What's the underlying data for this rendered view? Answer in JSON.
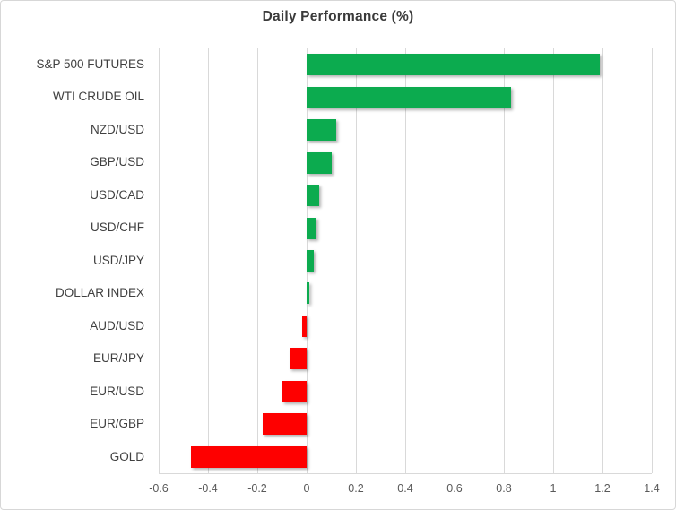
{
  "chart": {
    "title": "Daily Performance (%)"
  },
  "chart_data": {
    "type": "bar",
    "orientation": "horizontal",
    "title": "Daily Performance (%)",
    "categories": [
      "S&P 500 FUTURES",
      "WTI CRUDE OIL",
      "NZD/USD",
      "GBP/USD",
      "USD/CAD",
      "USD/CHF",
      "USD/JPY",
      "DOLLAR INDEX",
      "AUD/USD",
      "EUR/JPY",
      "EUR/USD",
      "EUR/GBP",
      "GOLD"
    ],
    "values": [
      1.19,
      0.83,
      0.12,
      0.1,
      0.05,
      0.04,
      0.03,
      0.01,
      -0.02,
      -0.07,
      -0.1,
      -0.18,
      -0.47
    ],
    "xlabel": "",
    "ylabel": "",
    "xlim": [
      -0.6,
      1.4
    ],
    "xticks": [
      -0.6,
      -0.4,
      -0.2,
      0,
      0.2,
      0.4,
      0.6,
      0.8,
      1,
      1.2,
      1.4
    ],
    "xtick_labels": [
      "-0.6",
      "-0.4",
      "-0.2",
      "0",
      "0.2",
      "0.4",
      "0.6",
      "0.8",
      "1",
      "1.2",
      "1.4"
    ],
    "grid": "vertical-on",
    "legend": "none",
    "colors": {
      "positive": "#0cab4f",
      "negative": "#fe0000",
      "gridline": "#d9d9d9",
      "axis_line": "#d9d9d9",
      "title_text": "#3a3a3a",
      "label_text": "#404040",
      "tick_text": "#595959",
      "background": "#ffffff",
      "frame_border": "#d7d7d7"
    }
  }
}
